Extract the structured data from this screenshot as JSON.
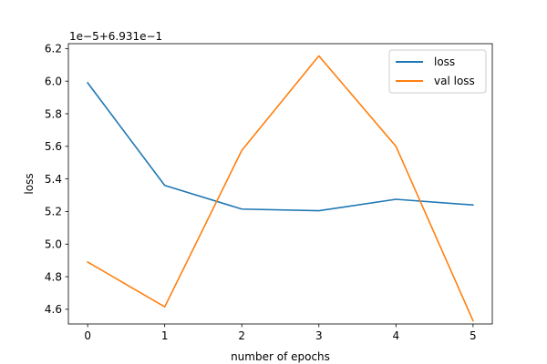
{
  "chart_data": {
    "type": "line",
    "offset_text": "1e−5+6.931e−1",
    "xlabel": "number of epochs",
    "ylabel": "loss",
    "x": [
      0,
      1,
      2,
      3,
      4,
      5
    ],
    "xticks": [
      0,
      1,
      2,
      3,
      4,
      5
    ],
    "xtick_labels": [
      "0",
      "1",
      "2",
      "3",
      "4",
      "5"
    ],
    "yticks": [
      4.6,
      4.8,
      5.0,
      5.2,
      5.4,
      5.6,
      5.8,
      6.0,
      6.2
    ],
    "ytick_labels": [
      "4.6",
      "4.8",
      "5.0",
      "5.2",
      "5.4",
      "5.6",
      "5.8",
      "6.0",
      "6.2"
    ],
    "xlim": [
      -0.25,
      5.25
    ],
    "ylim": [
      4.51,
      6.23
    ],
    "grid": false,
    "legend_position": "top-right",
    "series": [
      {
        "name": "loss",
        "color": "#1f77b4",
        "values": [
          5.99,
          5.36,
          5.215,
          5.205,
          5.275,
          5.24
        ]
      },
      {
        "name": "val loss",
        "color": "#ff7f0e",
        "values": [
          4.89,
          4.615,
          5.575,
          6.155,
          5.6,
          4.53
        ]
      }
    ]
  }
}
